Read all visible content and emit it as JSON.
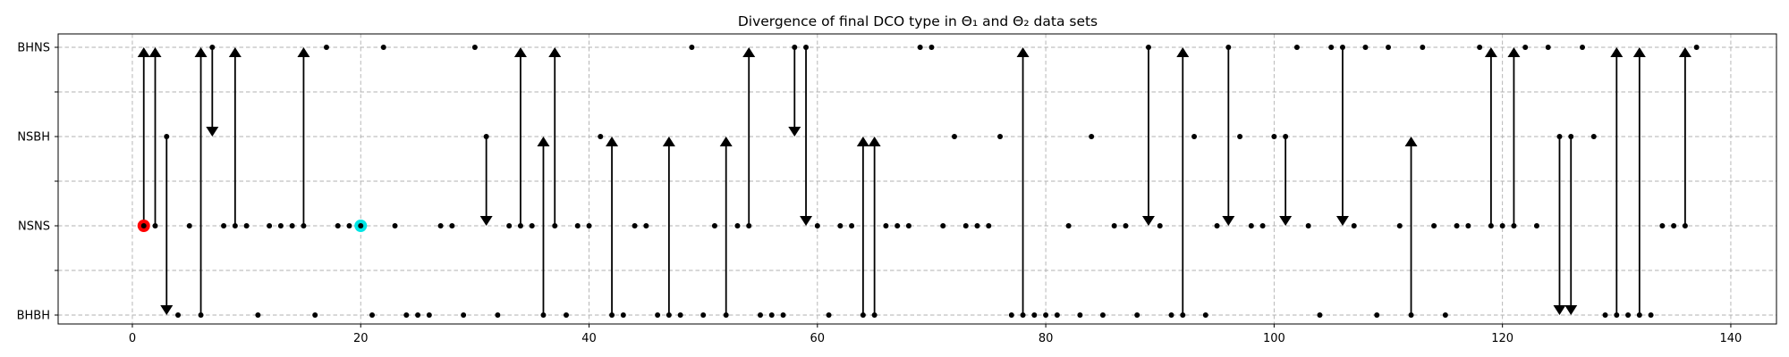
{
  "chart_data": {
    "type": "scatter",
    "title": "Divergence of final DCO type in Θ₁ and Θ₂ data sets",
    "xlabel": "",
    "ylabel": "",
    "xlim": [
      -6.5,
      144
    ],
    "x_ticks": [
      0,
      20,
      40,
      60,
      80,
      100,
      120,
      140
    ],
    "categories": [
      "BHBH",
      "NSNS",
      "NSBH",
      "BHNS"
    ],
    "category_levels": {
      "BHBH": 0,
      "NSNS": 1,
      "NSBH": 2,
      "BHNS": 3
    },
    "y_minor_ticks": [
      0.5,
      1.5,
      2.5
    ],
    "ylim": [
      -0.1,
      3.15
    ],
    "grid": true,
    "highlights": [
      {
        "x": 1,
        "category": "NSNS",
        "color": "#ff0000"
      },
      {
        "x": 20,
        "category": "NSNS",
        "color": "#00e5e5"
      }
    ],
    "changes": [
      {
        "x": 1,
        "from": "NSNS",
        "to": "BHNS"
      },
      {
        "x": 2,
        "from": "NSNS",
        "to": "BHNS"
      },
      {
        "x": 3,
        "from": "NSBH",
        "to": "BHBH"
      },
      {
        "x": 6,
        "from": "BHBH",
        "to": "BHNS"
      },
      {
        "x": 7,
        "from": "BHNS",
        "to": "NSBH"
      },
      {
        "x": 9,
        "from": "NSNS",
        "to": "BHNS"
      },
      {
        "x": 15,
        "from": "NSNS",
        "to": "BHNS"
      },
      {
        "x": 31,
        "from": "NSBH",
        "to": "NSNS"
      },
      {
        "x": 34,
        "from": "NSNS",
        "to": "BHNS"
      },
      {
        "x": 36,
        "from": "BHBH",
        "to": "NSBH"
      },
      {
        "x": 37,
        "from": "NSNS",
        "to": "BHNS"
      },
      {
        "x": 42,
        "from": "BHBH",
        "to": "NSBH"
      },
      {
        "x": 47,
        "from": "BHBH",
        "to": "NSBH"
      },
      {
        "x": 52,
        "from": "BHBH",
        "to": "NSBH"
      },
      {
        "x": 54,
        "from": "NSNS",
        "to": "BHNS"
      },
      {
        "x": 58,
        "from": "BHNS",
        "to": "NSBH"
      },
      {
        "x": 59,
        "from": "BHNS",
        "to": "NSNS"
      },
      {
        "x": 64,
        "from": "BHBH",
        "to": "NSBH"
      },
      {
        "x": 65,
        "from": "BHBH",
        "to": "NSBH"
      },
      {
        "x": 78,
        "from": "BHBH",
        "to": "BHNS"
      },
      {
        "x": 89,
        "from": "BHNS",
        "to": "NSNS"
      },
      {
        "x": 92,
        "from": "BHBH",
        "to": "BHNS"
      },
      {
        "x": 96,
        "from": "BHNS",
        "to": "NSNS"
      },
      {
        "x": 101,
        "from": "NSBH",
        "to": "NSNS"
      },
      {
        "x": 106,
        "from": "BHNS",
        "to": "NSNS"
      },
      {
        "x": 112,
        "from": "BHBH",
        "to": "NSBH"
      },
      {
        "x": 119,
        "from": "NSNS",
        "to": "BHNS"
      },
      {
        "x": 121,
        "from": "NSNS",
        "to": "BHNS"
      },
      {
        "x": 125,
        "from": "NSBH",
        "to": "BHBH"
      },
      {
        "x": 126,
        "from": "NSBH",
        "to": "BHBH"
      },
      {
        "x": 130,
        "from": "BHBH",
        "to": "BHNS"
      },
      {
        "x": 132,
        "from": "BHBH",
        "to": "BHNS"
      },
      {
        "x": 136,
        "from": "NSNS",
        "to": "BHNS"
      }
    ],
    "unchanged": [
      {
        "x": 4,
        "category": "BHBH"
      },
      {
        "x": 5,
        "category": "NSNS"
      },
      {
        "x": 8,
        "category": "NSNS"
      },
      {
        "x": 10,
        "category": "NSNS"
      },
      {
        "x": 11,
        "category": "BHBH"
      },
      {
        "x": 12,
        "category": "NSNS"
      },
      {
        "x": 13,
        "category": "NSNS"
      },
      {
        "x": 14,
        "category": "NSNS"
      },
      {
        "x": 16,
        "category": "BHBH"
      },
      {
        "x": 17,
        "category": "BHNS"
      },
      {
        "x": 18,
        "category": "NSNS"
      },
      {
        "x": 19,
        "category": "NSNS"
      },
      {
        "x": 21,
        "category": "BHBH"
      },
      {
        "x": 22,
        "category": "BHNS"
      },
      {
        "x": 23,
        "category": "NSNS"
      },
      {
        "x": 24,
        "category": "BHBH"
      },
      {
        "x": 25,
        "category": "BHBH"
      },
      {
        "x": 26,
        "category": "BHBH"
      },
      {
        "x": 27,
        "category": "NSNS"
      },
      {
        "x": 28,
        "category": "NSNS"
      },
      {
        "x": 29,
        "category": "BHBH"
      },
      {
        "x": 30,
        "category": "BHNS"
      },
      {
        "x": 32,
        "category": "BHBH"
      },
      {
        "x": 33,
        "category": "NSNS"
      },
      {
        "x": 35,
        "category": "NSNS"
      },
      {
        "x": 38,
        "category": "BHBH"
      },
      {
        "x": 39,
        "category": "NSNS"
      },
      {
        "x": 40,
        "category": "NSNS"
      },
      {
        "x": 41,
        "category": "NSBH"
      },
      {
        "x": 43,
        "category": "BHBH"
      },
      {
        "x": 44,
        "category": "NSNS"
      },
      {
        "x": 45,
        "category": "NSNS"
      },
      {
        "x": 46,
        "category": "BHBH"
      },
      {
        "x": 48,
        "category": "BHBH"
      },
      {
        "x": 49,
        "category": "BHNS"
      },
      {
        "x": 50,
        "category": "BHBH"
      },
      {
        "x": 51,
        "category": "NSNS"
      },
      {
        "x": 53,
        "category": "NSNS"
      },
      {
        "x": 55,
        "category": "BHBH"
      },
      {
        "x": 56,
        "category": "BHBH"
      },
      {
        "x": 57,
        "category": "BHBH"
      },
      {
        "x": 60,
        "category": "NSNS"
      },
      {
        "x": 61,
        "category": "BHBH"
      },
      {
        "x": 62,
        "category": "NSNS"
      },
      {
        "x": 63,
        "category": "NSNS"
      },
      {
        "x": 66,
        "category": "NSNS"
      },
      {
        "x": 67,
        "category": "NSNS"
      },
      {
        "x": 68,
        "category": "NSNS"
      },
      {
        "x": 69,
        "category": "BHNS"
      },
      {
        "x": 70,
        "category": "BHNS"
      },
      {
        "x": 71,
        "category": "NSNS"
      },
      {
        "x": 72,
        "category": "NSBH"
      },
      {
        "x": 73,
        "category": "NSNS"
      },
      {
        "x": 74,
        "category": "NSNS"
      },
      {
        "x": 75,
        "category": "NSNS"
      },
      {
        "x": 76,
        "category": "NSBH"
      },
      {
        "x": 77,
        "category": "BHBH"
      },
      {
        "x": 79,
        "category": "BHBH"
      },
      {
        "x": 80,
        "category": "BHBH"
      },
      {
        "x": 81,
        "category": "BHBH"
      },
      {
        "x": 82,
        "category": "NSNS"
      },
      {
        "x": 83,
        "category": "BHBH"
      },
      {
        "x": 84,
        "category": "NSBH"
      },
      {
        "x": 85,
        "category": "BHBH"
      },
      {
        "x": 86,
        "category": "NSNS"
      },
      {
        "x": 87,
        "category": "NSNS"
      },
      {
        "x": 88,
        "category": "BHBH"
      },
      {
        "x": 90,
        "category": "NSNS"
      },
      {
        "x": 91,
        "category": "BHBH"
      },
      {
        "x": 93,
        "category": "NSBH"
      },
      {
        "x": 94,
        "category": "BHBH"
      },
      {
        "x": 95,
        "category": "NSNS"
      },
      {
        "x": 97,
        "category": "NSBH"
      },
      {
        "x": 98,
        "category": "NSNS"
      },
      {
        "x": 99,
        "category": "NSNS"
      },
      {
        "x": 100,
        "category": "NSBH"
      },
      {
        "x": 102,
        "category": "BHNS"
      },
      {
        "x": 103,
        "category": "NSNS"
      },
      {
        "x": 104,
        "category": "BHBH"
      },
      {
        "x": 105,
        "category": "BHNS"
      },
      {
        "x": 107,
        "category": "NSNS"
      },
      {
        "x": 108,
        "category": "BHNS"
      },
      {
        "x": 109,
        "category": "BHBH"
      },
      {
        "x": 110,
        "category": "BHNS"
      },
      {
        "x": 111,
        "category": "NSNS"
      },
      {
        "x": 113,
        "category": "BHNS"
      },
      {
        "x": 114,
        "category": "NSNS"
      },
      {
        "x": 115,
        "category": "BHBH"
      },
      {
        "x": 116,
        "category": "NSNS"
      },
      {
        "x": 117,
        "category": "NSNS"
      },
      {
        "x": 118,
        "category": "BHNS"
      },
      {
        "x": 120,
        "category": "NSNS"
      },
      {
        "x": 122,
        "category": "BHNS"
      },
      {
        "x": 123,
        "category": "NSNS"
      },
      {
        "x": 124,
        "category": "BHNS"
      },
      {
        "x": 127,
        "category": "BHNS"
      },
      {
        "x": 128,
        "category": "NSBH"
      },
      {
        "x": 129,
        "category": "BHBH"
      },
      {
        "x": 131,
        "category": "BHBH"
      },
      {
        "x": 133,
        "category": "BHBH"
      },
      {
        "x": 134,
        "category": "NSNS"
      },
      {
        "x": 135,
        "category": "NSNS"
      },
      {
        "x": 137,
        "category": "BHNS"
      }
    ]
  }
}
